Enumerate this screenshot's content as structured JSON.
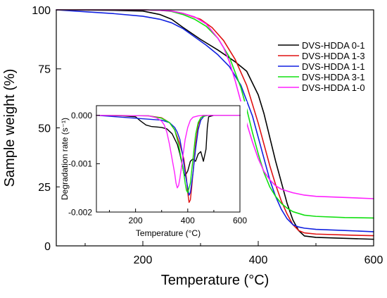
{
  "chart_data": [
    {
      "type": "line",
      "role": "main",
      "xlabel": "Temperature (°C)",
      "ylabel": "Sample weight (%)",
      "xlim": [
        50,
        600
      ],
      "ylim": [
        0,
        100
      ],
      "xticks": [
        200,
        400,
        600
      ],
      "xticks_minor": [
        100,
        300,
        500
      ],
      "yticks": [
        0,
        25,
        50,
        75,
        100
      ],
      "grid": false,
      "legend_position": "top-right",
      "series": [
        {
          "name": "DVS-HDDA 0-1",
          "color": "#000000",
          "x": [
            50,
            100,
            150,
            200,
            230,
            250,
            270,
            300,
            330,
            360,
            380,
            400,
            410,
            420,
            430,
            440,
            450,
            460,
            470,
            480,
            500,
            550,
            600
          ],
          "y": [
            100,
            99.9,
            99.8,
            99.5,
            98,
            96,
            92.5,
            87.5,
            83,
            78,
            74,
            64,
            56,
            46,
            36,
            27,
            18,
            11,
            6.5,
            4.2,
            3.6,
            3.2,
            2.8
          ]
        },
        {
          "name": "DVS-HDDA 1-3",
          "color": "#e01010",
          "x": [
            50,
            200,
            230,
            250,
            270,
            300,
            320,
            340,
            360,
            380,
            400,
            410,
            420,
            430,
            440,
            450,
            460,
            470,
            480,
            500,
            550,
            600
          ],
          "y": [
            100,
            100,
            99.8,
            99.5,
            98.5,
            96,
            92.5,
            87,
            79,
            68,
            52,
            43,
            34,
            26,
            19,
            13.5,
            9,
            6.5,
            5.5,
            5,
            4.6,
            4.3
          ]
        },
        {
          "name": "DVS-HDDA 1-1",
          "color": "#1020e0",
          "x": [
            50,
            100,
            150,
            200,
            230,
            250,
            270,
            290,
            310,
            330,
            350,
            370,
            390,
            400,
            410,
            420,
            430,
            440,
            450,
            460,
            470,
            480,
            500,
            550,
            600
          ],
          "y": [
            100,
            99.2,
            98.4,
            97.3,
            96,
            94.5,
            92,
            88.5,
            85,
            81,
            76,
            68,
            55,
            46,
            37,
            28,
            21,
            15.5,
            11.5,
            9,
            8,
            7.5,
            7,
            6.5,
            6
          ]
        },
        {
          "name": "DVS-HDDA 3-1",
          "color": "#10e010",
          "x": [
            50,
            200,
            230,
            250,
            270,
            290,
            310,
            330,
            350,
            370,
            380,
            390,
            400,
            410,
            420,
            430,
            440,
            450,
            460,
            480,
            500,
            550,
            600
          ],
          "y": [
            100,
            100,
            99.8,
            99.3,
            98,
            96,
            93,
            88,
            80,
            67,
            58,
            48,
            39,
            31,
            25,
            21,
            18,
            16,
            14.5,
            13,
            12.5,
            12,
            11.8
          ]
        },
        {
          "name": "DVS-HDDA 1-0",
          "color": "#ff20ff",
          "x": [
            50,
            200,
            230,
            250,
            270,
            290,
            310,
            330,
            340,
            350,
            360,
            370,
            380,
            390,
            400,
            410,
            420,
            430,
            440,
            460,
            480,
            500,
            550,
            600
          ],
          "y": [
            100,
            100,
            99.8,
            99.5,
            98.5,
            97,
            94,
            88,
            84,
            78,
            70,
            61,
            52,
            44,
            37,
            31.5,
            28,
            25.5,
            24,
            22.5,
            21.5,
            21,
            20.5,
            20
          ]
        }
      ]
    },
    {
      "type": "line",
      "role": "inset",
      "xlabel": "Temperature (°C)",
      "ylabel": "Degradation rate (s⁻¹)",
      "xlim": [
        50,
        600
      ],
      "ylim": [
        -0.002,
        0.0002
      ],
      "xticks": [
        200,
        400,
        600
      ],
      "xticks_minor": [
        100,
        300,
        500
      ],
      "yticks": [
        0,
        -0.001,
        -0.002
      ],
      "ytick_labels": [
        "0.000",
        "-0.001",
        "-0.002"
      ],
      "grid": false,
      "series": [
        {
          "color": "#000000",
          "x": [
            50,
            150,
            200,
            220,
            240,
            260,
            280,
            300,
            320,
            340,
            360,
            370,
            380,
            385,
            390,
            400,
            410,
            420,
            430,
            440,
            450,
            460,
            470,
            475,
            480,
            500,
            600
          ],
          "y": [
            0,
            -1e-05,
            -3e-05,
            -0.00012,
            -0.0002,
            -0.00023,
            -0.00024,
            -0.00025,
            -0.00028,
            -0.00038,
            -0.0006,
            -0.0008,
            -0.00105,
            -0.0012,
            -0.00125,
            -0.00115,
            -0.00095,
            -0.0009,
            -0.00095,
            -0.0008,
            -0.00075,
            -0.00095,
            -0.0007,
            -0.00025,
            -3e-05,
            0,
            0
          ]
        },
        {
          "color": "#e01010",
          "x": [
            50,
            250,
            300,
            330,
            350,
            370,
            385,
            395,
            400,
            405,
            410,
            415,
            420,
            430,
            440,
            450,
            460,
            470,
            480,
            500,
            600
          ],
          "y": [
            0,
            -1e-05,
            -5e-05,
            -0.00015,
            -0.0003,
            -0.0006,
            -0.0009,
            -0.0013,
            -0.0016,
            -0.0018,
            -0.00175,
            -0.0015,
            -0.0012,
            -0.0006,
            -0.0002,
            -5e-05,
            -1e-05,
            0,
            0,
            0,
            0
          ]
        },
        {
          "color": "#1020e0",
          "x": [
            50,
            100,
            150,
            200,
            250,
            300,
            330,
            350,
            360,
            370,
            380,
            390,
            400,
            405,
            410,
            420,
            430,
            440,
            450,
            460,
            470,
            500,
            600
          ],
          "y": [
            0,
            -2e-05,
            -4e-05,
            -6e-05,
            -8e-05,
            -0.0001,
            -0.00015,
            -0.00025,
            -0.00035,
            -0.0005,
            -0.0008,
            -0.0012,
            -0.0015,
            -0.00165,
            -0.0016,
            -0.0012,
            -0.0007,
            -0.0003,
            -0.0001,
            -3e-05,
            0,
            0,
            0
          ]
        },
        {
          "color": "#10e010",
          "x": [
            50,
            250,
            300,
            330,
            350,
            365,
            375,
            385,
            390,
            395,
            400,
            410,
            420,
            430,
            440,
            450,
            460,
            480,
            500,
            600
          ],
          "y": [
            0,
            -1e-05,
            -6e-05,
            -0.00015,
            -0.0003,
            -0.0006,
            -0.0009,
            -0.0012,
            -0.0014,
            -0.00155,
            -0.0016,
            -0.0014,
            -0.0009,
            -0.0004,
            -0.00015,
            -5e-05,
            -2e-05,
            0,
            0,
            0
          ]
        },
        {
          "color": "#ff20ff",
          "x": [
            50,
            250,
            280,
            300,
            310,
            320,
            330,
            340,
            350,
            355,
            360,
            365,
            370,
            380,
            390,
            400,
            410,
            420,
            440,
            460,
            500,
            600
          ],
          "y": [
            0,
            -1e-05,
            -5e-05,
            -0.00012,
            -0.0002,
            -0.00035,
            -0.0006,
            -0.0009,
            -0.0012,
            -0.0014,
            -0.0015,
            -0.00145,
            -0.0013,
            -0.0009,
            -0.0005,
            -0.00025,
            -0.0001,
            -4e-05,
            -1e-05,
            0,
            0,
            0
          ]
        }
      ]
    }
  ]
}
